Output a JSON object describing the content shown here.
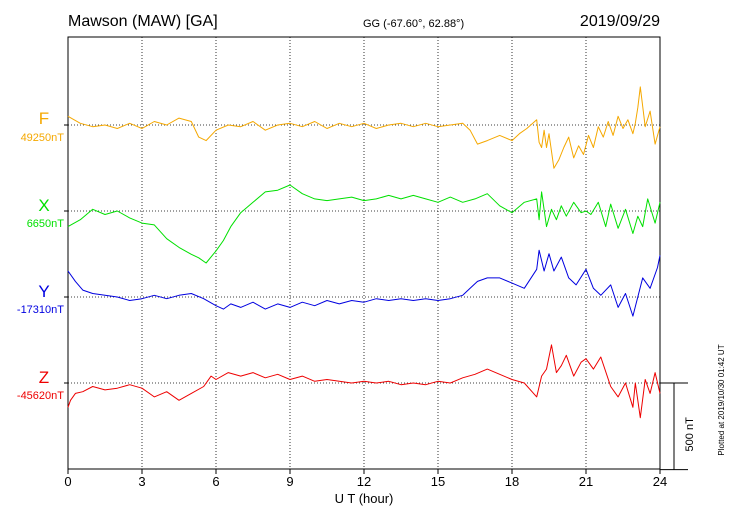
{
  "header": {
    "station": "Mawson (MAW)  [GA]",
    "coords": "GG (-67.60°,  62.88°)",
    "date": "2019/09/29"
  },
  "footer": {
    "plotted": "Plotted at 2019/10/30 01:42 UT"
  },
  "chart_data": {
    "type": "line",
    "xlabel": "U T (hour)",
    "xlim": [
      0,
      24
    ],
    "xticks": [
      0,
      3,
      6,
      9,
      12,
      15,
      18,
      21,
      24
    ],
    "scale_bar": {
      "label": "500 nT",
      "value": 500
    },
    "colors": {
      "F": "#f5a800",
      "X": "#00e000",
      "Y": "#0000e0",
      "Z": "#ee0000"
    },
    "series": [
      {
        "name": "F",
        "baseline_label": "49250nT",
        "baseline": 49250,
        "x": [
          0,
          0.5,
          1,
          1.5,
          2,
          2.5,
          3,
          3.5,
          4,
          4.5,
          5,
          5.3,
          5.6,
          6,
          6.5,
          7,
          7.5,
          8,
          8.5,
          9,
          9.5,
          10,
          10.5,
          11,
          11.5,
          12,
          12.5,
          13,
          13.5,
          14,
          14.5,
          15,
          15.5,
          16,
          16.3,
          16.6,
          17,
          17.5,
          18,
          18.3,
          18.6,
          19,
          19.1,
          19.2,
          19.3,
          19.4,
          19.5,
          19.7,
          19.9,
          20.1,
          20.3,
          20.5,
          20.7,
          20.9,
          21.1,
          21.3,
          21.5,
          21.7,
          21.9,
          22.1,
          22.3,
          22.5,
          22.7,
          22.9,
          23.0,
          23.1,
          23.2,
          23.4,
          23.6,
          23.8,
          24
        ],
        "y": [
          49300,
          49260,
          49240,
          49250,
          49230,
          49260,
          49230,
          49270,
          49250,
          49290,
          49270,
          49180,
          49160,
          49220,
          49250,
          49240,
          49270,
          49220,
          49250,
          49260,
          49240,
          49270,
          49230,
          49260,
          49240,
          49260,
          49230,
          49250,
          49260,
          49240,
          49260,
          49240,
          49250,
          49260,
          49220,
          49140,
          49160,
          49190,
          49160,
          49200,
          49230,
          49280,
          49150,
          49120,
          49220,
          49120,
          49200,
          49000,
          49050,
          49120,
          49180,
          49060,
          49130,
          49080,
          49190,
          49120,
          49240,
          49180,
          49270,
          49190,
          49300,
          49230,
          49280,
          49200,
          49260,
          49350,
          49470,
          49240,
          49330,
          49140,
          49240
        ]
      },
      {
        "name": "X",
        "baseline_label": "6650nT",
        "baseline": 6650,
        "x": [
          0,
          0.5,
          1,
          1.5,
          2,
          2.5,
          3,
          3.5,
          4,
          4.5,
          5,
          5.3,
          5.6,
          6,
          6.3,
          6.6,
          7,
          7.5,
          8,
          8.5,
          9,
          9.5,
          10,
          10.5,
          11,
          11.5,
          12,
          12.5,
          13,
          13.5,
          14,
          14.5,
          15,
          15.5,
          16,
          16.5,
          17,
          17.5,
          18,
          18.5,
          19,
          19.1,
          19.2,
          19.4,
          19.6,
          19.8,
          20,
          20.2,
          20.5,
          20.8,
          21,
          21.2,
          21.5,
          21.8,
          22,
          22.3,
          22.6,
          22.9,
          23.1,
          23.3,
          23.5,
          23.8,
          24
        ],
        "y": [
          6560,
          6600,
          6660,
          6630,
          6650,
          6610,
          6580,
          6570,
          6490,
          6440,
          6400,
          6380,
          6350,
          6420,
          6480,
          6560,
          6640,
          6700,
          6760,
          6770,
          6800,
          6750,
          6720,
          6710,
          6720,
          6730,
          6710,
          6720,
          6740,
          6720,
          6740,
          6720,
          6700,
          6730,
          6700,
          6720,
          6750,
          6680,
          6640,
          6700,
          6720,
          6600,
          6760,
          6560,
          6660,
          6600,
          6680,
          6620,
          6700,
          6640,
          6650,
          6630,
          6700,
          6560,
          6690,
          6550,
          6660,
          6520,
          6620,
          6560,
          6720,
          6580,
          6700
        ]
      },
      {
        "name": "Y",
        "baseline_label": "-17310nT",
        "baseline": -17310,
        "x": [
          0,
          0.3,
          0.6,
          1,
          1.5,
          2,
          2.5,
          3,
          3.5,
          4,
          4.5,
          5,
          5.5,
          6,
          6.3,
          6.6,
          7,
          7.5,
          8,
          8.5,
          9,
          9.5,
          10,
          10.5,
          11,
          11.5,
          12,
          12.5,
          13,
          13.5,
          14,
          14.5,
          15,
          15.5,
          16,
          16.3,
          16.6,
          17,
          17.5,
          18,
          18.5,
          19,
          19.1,
          19.3,
          19.5,
          19.7,
          20,
          20.3,
          20.6,
          21,
          21.3,
          21.6,
          22,
          22.3,
          22.6,
          22.9,
          23.1,
          23.3,
          23.6,
          23.9,
          24
        ],
        "y": [
          -17160,
          -17220,
          -17270,
          -17290,
          -17300,
          -17310,
          -17330,
          -17320,
          -17300,
          -17320,
          -17300,
          -17290,
          -17320,
          -17360,
          -17380,
          -17350,
          -17370,
          -17340,
          -17380,
          -17350,
          -17370,
          -17340,
          -17360,
          -17330,
          -17350,
          -17330,
          -17340,
          -17320,
          -17330,
          -17320,
          -17330,
          -17320,
          -17330,
          -17320,
          -17300,
          -17260,
          -17220,
          -17200,
          -17200,
          -17230,
          -17260,
          -17150,
          -17040,
          -17160,
          -17060,
          -17160,
          -17080,
          -17200,
          -17240,
          -17150,
          -17260,
          -17300,
          -17240,
          -17370,
          -17290,
          -17420,
          -17310,
          -17200,
          -17260,
          -17140,
          -17070
        ]
      },
      {
        "name": "Z",
        "baseline_label": "-45620nT",
        "baseline": -45620,
        "x": [
          0,
          0.1,
          0.3,
          0.6,
          1,
          1.5,
          2,
          2.5,
          3,
          3.5,
          4,
          4.5,
          5,
          5.5,
          5.8,
          6,
          6.5,
          7,
          7.5,
          8,
          8.5,
          9,
          9.5,
          10,
          10.5,
          11,
          11.5,
          12,
          12.5,
          13,
          13.5,
          14,
          14.5,
          15,
          15.5,
          16,
          16.5,
          17,
          17.5,
          18,
          18.5,
          19,
          19.2,
          19.4,
          19.6,
          19.8,
          20,
          20.2,
          20.5,
          20.8,
          21,
          21.3,
          21.6,
          22,
          22.3,
          22.6,
          22.9,
          23.0,
          23.2,
          23.4,
          23.6,
          23.8,
          24
        ],
        "y": [
          -45760,
          -45720,
          -45680,
          -45670,
          -45640,
          -45660,
          -45650,
          -45630,
          -45650,
          -45700,
          -45670,
          -45720,
          -45680,
          -45640,
          -45580,
          -45600,
          -45560,
          -45580,
          -45560,
          -45590,
          -45570,
          -45600,
          -45580,
          -45610,
          -45600,
          -45610,
          -45620,
          -45610,
          -45620,
          -45610,
          -45630,
          -45620,
          -45630,
          -45610,
          -45620,
          -45590,
          -45570,
          -45540,
          -45570,
          -45600,
          -45620,
          -45700,
          -45580,
          -45540,
          -45400,
          -45560,
          -45520,
          -45460,
          -45580,
          -45500,
          -45480,
          -45540,
          -45470,
          -45640,
          -45700,
          -45620,
          -45760,
          -45620,
          -45820,
          -45600,
          -45680,
          -45560,
          -45680
        ]
      }
    ]
  }
}
